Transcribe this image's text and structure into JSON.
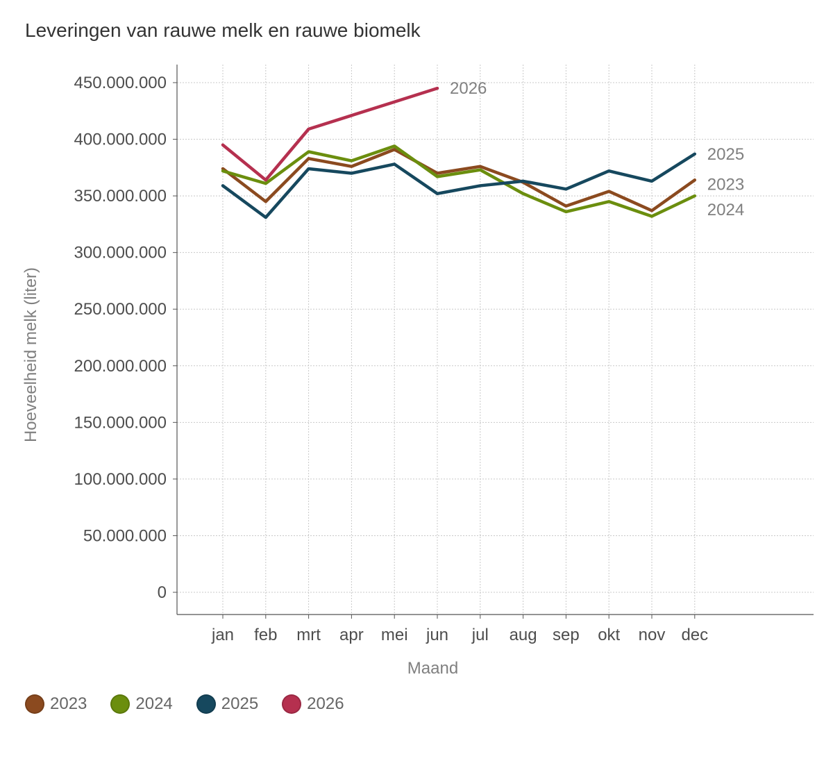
{
  "chart_data": {
    "type": "line",
    "title": "Leveringen van rauwe melk en rauwe biomelk",
    "xlabel": "Maand",
    "ylabel": "Hoeveelheid melk (liter)",
    "categories": [
      "jan",
      "feb",
      "mrt",
      "apr",
      "mei",
      "jun",
      "jul",
      "aug",
      "sep",
      "okt",
      "nov",
      "dec"
    ],
    "ylim": [
      0,
      450000000
    ],
    "yticks": [
      0,
      50000000,
      100000000,
      150000000,
      200000000,
      250000000,
      300000000,
      350000000,
      400000000,
      450000000
    ],
    "ytick_labels": [
      "0",
      "50.000.000",
      "100.000.000",
      "150.000.000",
      "200.000.000",
      "250.000.000",
      "300.000.000",
      "350.000.000",
      "400.000.000",
      "450.000.000"
    ],
    "grid": true,
    "legend_position": "bottom-left",
    "series": [
      {
        "name": "2023",
        "color": "#8b4a1f",
        "values": [
          374000000,
          345000000,
          383000000,
          376000000,
          391000000,
          370000000,
          376000000,
          362000000,
          341000000,
          354000000,
          337000000,
          364000000
        ]
      },
      {
        "name": "2024",
        "color": "#6b8e0e",
        "values": [
          372000000,
          361000000,
          389000000,
          381000000,
          394000000,
          367000000,
          373000000,
          352000000,
          336000000,
          345000000,
          332000000,
          350000000
        ]
      },
      {
        "name": "2025",
        "color": "#16485e",
        "values": [
          359000000,
          331000000,
          374000000,
          370000000,
          378000000,
          352000000,
          359000000,
          363000000,
          356000000,
          372000000,
          363000000,
          387000000
        ]
      },
      {
        "name": "2026",
        "color": "#b5304f",
        "values": [
          395000000,
          364000000,
          409000000,
          421000000,
          433000000,
          445000000,
          null,
          null,
          null,
          null,
          null,
          null
        ]
      }
    ]
  }
}
